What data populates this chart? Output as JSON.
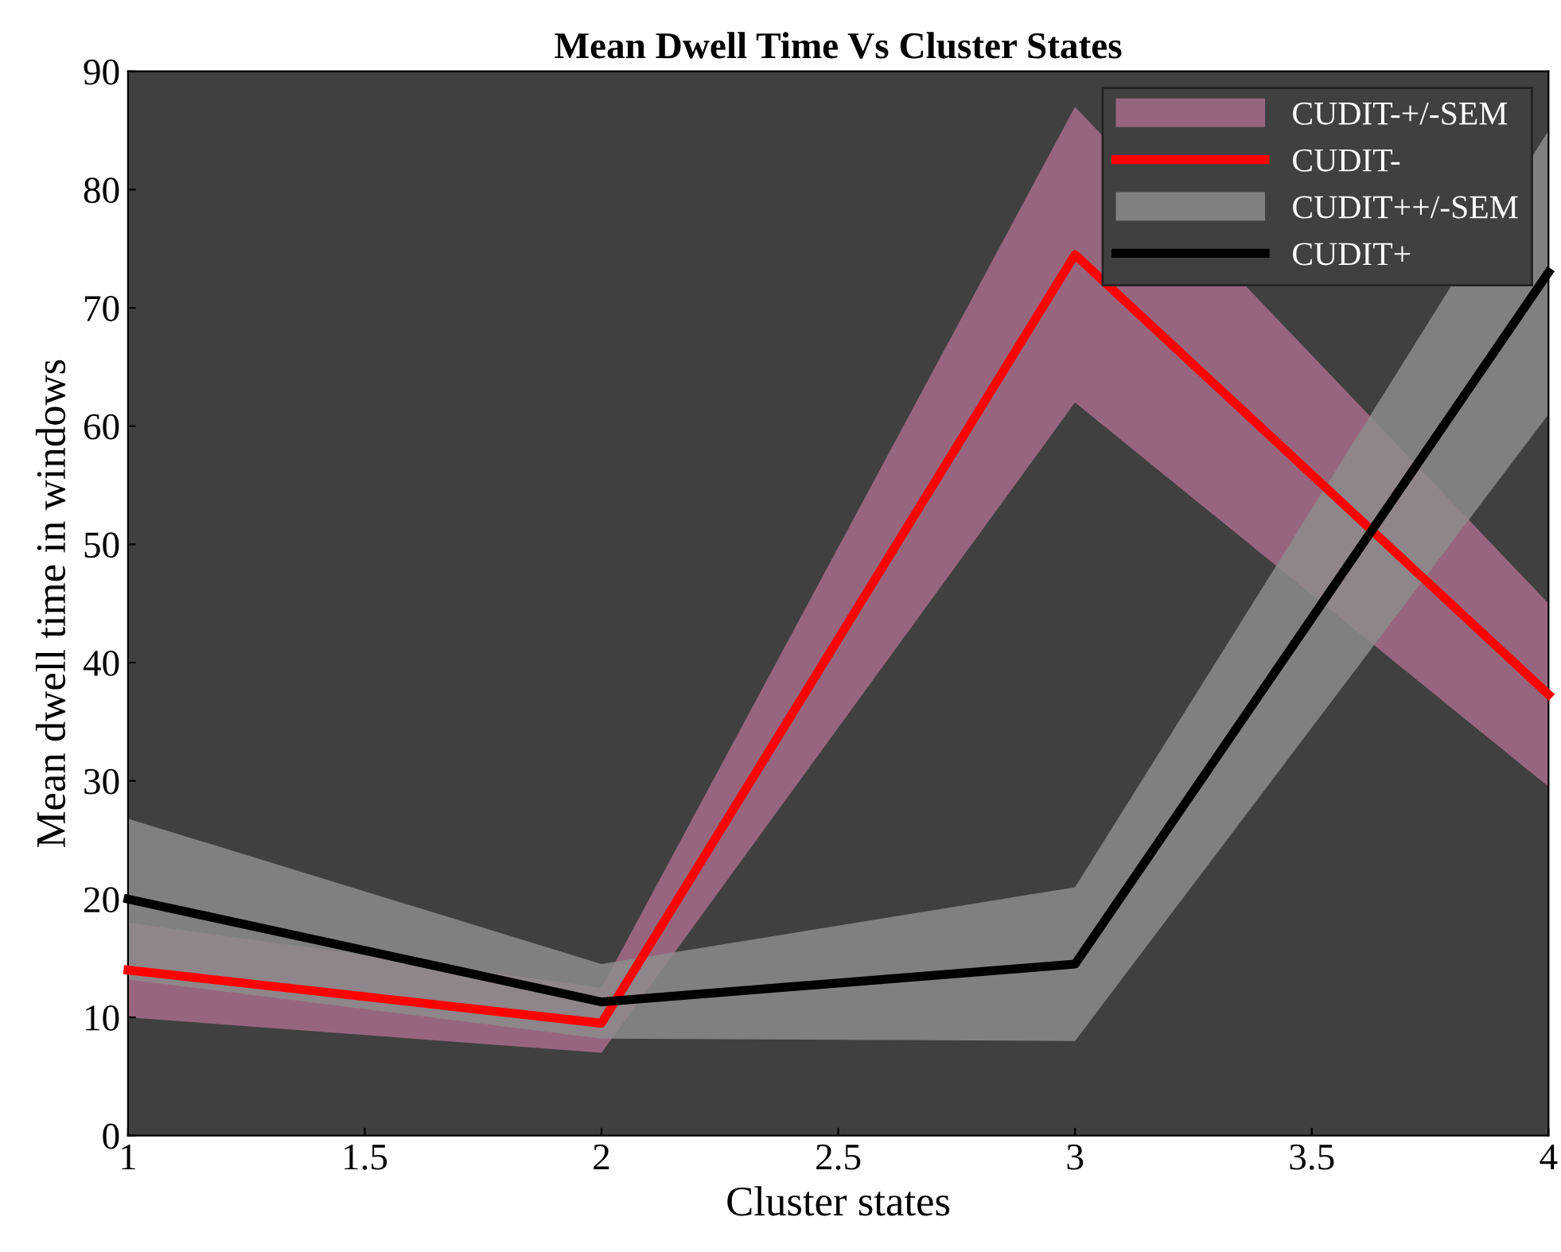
{
  "chart_data": {
    "type": "line",
    "title": "Mean Dwell Time Vs Cluster States",
    "xlabel": "Cluster states",
    "ylabel": "Mean dwell time in windows",
    "annotations": [
      "CUDIT-+/-SEM",
      "CUDIT++/-SEM"
    ],
    "x": [
      1,
      2,
      3,
      4
    ],
    "xlim": [
      1,
      4
    ],
    "xticks": [
      1,
      1.5,
      2,
      2.5,
      3,
      3.5,
      4
    ],
    "ylim": [
      0,
      90
    ],
    "yticks": [
      0,
      10,
      20,
      30,
      40,
      50,
      60,
      70,
      80,
      90
    ],
    "grid": false,
    "legend": "top right",
    "series": [
      {
        "name": "CUDIT-",
        "color": "#ff0000",
        "values": [
          14,
          9.5,
          74.5,
          37.3
        ],
        "lower": [
          10,
          7,
          62,
          29.5
        ],
        "upper": [
          18,
          12.5,
          87,
          45
        ]
      },
      {
        "name": "CUDIT+",
        "color": "#000000",
        "values": [
          20,
          11.3,
          14.5,
          73
        ],
        "lower": [
          13.2,
          8.2,
          8,
          61
        ],
        "upper": [
          26.8,
          14.5,
          21,
          85
        ]
      }
    ]
  }
}
